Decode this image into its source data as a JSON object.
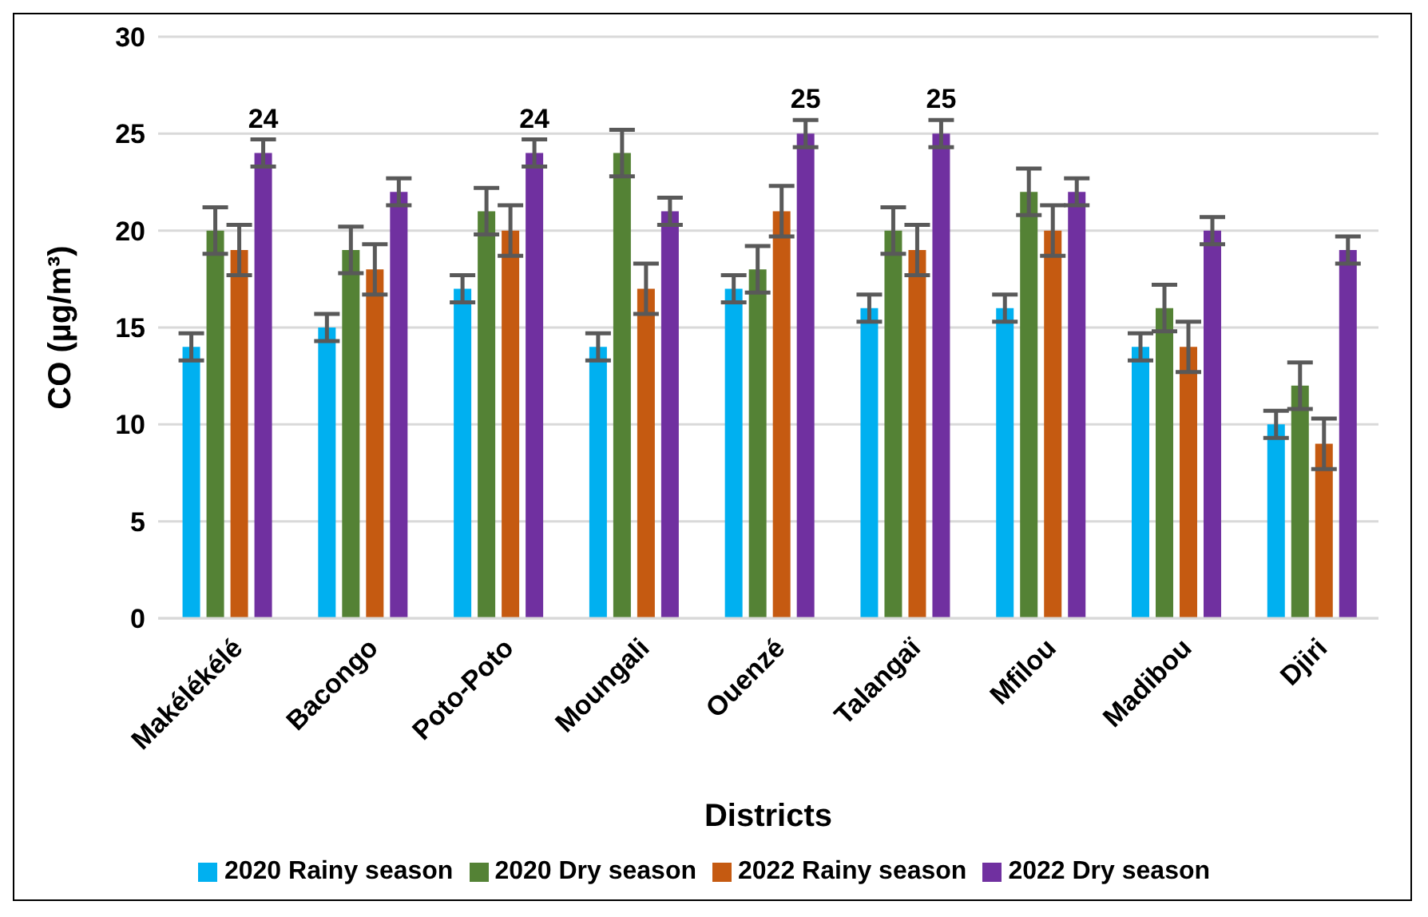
{
  "chart_data": {
    "type": "bar",
    "xlabel": "Districts",
    "ylabel": "CO (µg/m³)",
    "categories": [
      "Makélékélé",
      "Bacongo",
      "Poto-Poto",
      "Moungali",
      "Ouenzé",
      "Talangaï",
      "Mfilou",
      "Madibou",
      "Djiri"
    ],
    "series": [
      {
        "name": "2020 Rainy season",
        "color": "#00b0f0",
        "values": [
          14,
          15,
          17,
          14,
          17,
          16,
          16,
          14,
          10
        ],
        "errors": [
          0.7,
          0.7,
          0.7,
          0.7,
          0.7,
          0.7,
          0.7,
          0.7,
          0.7
        ]
      },
      {
        "name": "2020 Dry season",
        "color": "#548235",
        "values": [
          20,
          19,
          21,
          24,
          18,
          20,
          22,
          16,
          12
        ],
        "errors": [
          1.2,
          1.2,
          1.2,
          1.2,
          1.2,
          1.2,
          1.2,
          1.2,
          1.2
        ]
      },
      {
        "name": "2022 Rainy season",
        "color": "#c55a11",
        "values": [
          19,
          18,
          20,
          17,
          21,
          19,
          20,
          14,
          9
        ],
        "errors": [
          1.3,
          1.3,
          1.3,
          1.3,
          1.3,
          1.3,
          1.3,
          1.3,
          1.3
        ]
      },
      {
        "name": "2022 Dry season",
        "color": "#7030a0",
        "values": [
          24,
          22,
          24,
          21,
          25,
          25,
          22,
          20,
          19
        ],
        "errors": [
          0.7,
          0.7,
          0.7,
          0.7,
          0.7,
          0.7,
          0.7,
          0.7,
          0.7
        ],
        "value_labels": [
          "24",
          null,
          "24",
          null,
          "25",
          "25",
          null,
          null,
          null
        ]
      }
    ],
    "ylim": [
      0,
      30
    ],
    "yticks": [
      0,
      5,
      10,
      15,
      20,
      25,
      30
    ],
    "grid": "y",
    "legend": "bottom"
  }
}
